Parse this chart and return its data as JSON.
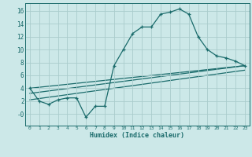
{
  "xlabel": "Humidex (Indice chaleur)",
  "bg_color": "#cce8e8",
  "grid_color": "#aacccc",
  "line_color": "#1a6b6b",
  "xlim": [
    -0.5,
    23.5
  ],
  "ylim": [
    -1.8,
    17.2
  ],
  "xticks": [
    0,
    1,
    2,
    3,
    4,
    5,
    6,
    7,
    8,
    9,
    10,
    11,
    12,
    13,
    14,
    15,
    16,
    17,
    18,
    19,
    20,
    21,
    22,
    23
  ],
  "yticks": [
    0,
    2,
    4,
    6,
    8,
    10,
    12,
    14,
    16
  ],
  "ytick_labels": [
    "-0",
    "2",
    "4",
    "6",
    "8",
    "10",
    "12",
    "14",
    "16"
  ],
  "curve1_x": [
    0,
    1,
    2,
    3,
    4,
    5,
    6,
    7,
    8,
    9,
    10,
    11,
    12,
    13,
    14,
    15,
    16,
    17,
    18,
    19,
    20,
    21,
    22,
    23
  ],
  "curve1_y": [
    4.0,
    2.0,
    1.5,
    2.2,
    2.5,
    2.5,
    -0.5,
    1.2,
    1.2,
    7.5,
    10.0,
    12.5,
    13.5,
    13.5,
    15.5,
    15.8,
    16.3,
    15.5,
    12.0,
    10.0,
    9.0,
    8.7,
    8.2,
    7.5
  ],
  "line2_x": [
    0,
    23
  ],
  "line2_y": [
    4.0,
    7.5
  ],
  "line3_x": [
    0,
    23
  ],
  "line3_y": [
    3.2,
    7.5
  ],
  "line4_x": [
    0,
    23
  ],
  "line4_y": [
    2.2,
    6.8
  ]
}
